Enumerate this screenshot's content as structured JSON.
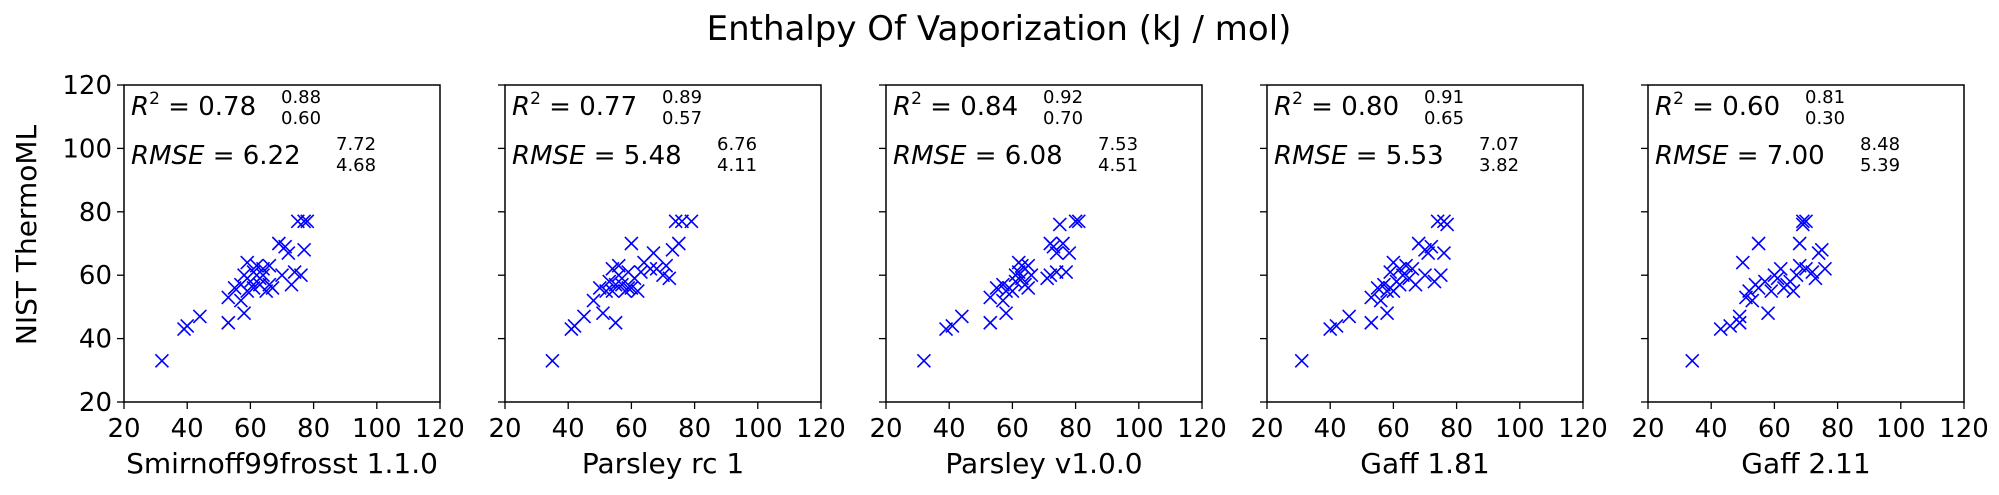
{
  "figure": {
    "title": "Enthalpy Of Vaporization (kJ / mol)",
    "shared_ylabel": "NIST ThermoML",
    "marker_color": "#0000ff",
    "marker_symbol": "x-marker"
  },
  "chart_data": [
    {
      "type": "scatter",
      "xlabel": "Smirnoff99frosst 1.1.0",
      "xlim": [
        20,
        120
      ],
      "ylim": [
        20,
        120
      ],
      "xticks": [
        20,
        40,
        60,
        80,
        100,
        120
      ],
      "yticks": [
        20,
        40,
        60,
        80,
        100,
        120
      ],
      "grid": false,
      "stats": {
        "r2": "0.78",
        "r2_hi": "0.88",
        "r2_lo": "0.60",
        "rmse": "6.22",
        "rmse_hi": "7.72",
        "rmse_lo": "4.68"
      },
      "points": [
        [
          32,
          33
        ],
        [
          39,
          43
        ],
        [
          40,
          44
        ],
        [
          44,
          47
        ],
        [
          53,
          45
        ],
        [
          53,
          53
        ],
        [
          55,
          56
        ],
        [
          57,
          52
        ],
        [
          57,
          57
        ],
        [
          58,
          48
        ],
        [
          58,
          60
        ],
        [
          59,
          64
        ],
        [
          59,
          55
        ],
        [
          60,
          58
        ],
        [
          61,
          56
        ],
        [
          61,
          61
        ],
        [
          62,
          63
        ],
        [
          63,
          57
        ],
        [
          63,
          59
        ],
        [
          64,
          62
        ],
        [
          64,
          60
        ],
        [
          65,
          55
        ],
        [
          66,
          57
        ],
        [
          66,
          63
        ],
        [
          67,
          56
        ],
        [
          69,
          70
        ],
        [
          70,
          60
        ],
        [
          71,
          69
        ],
        [
          72,
          67
        ],
        [
          73,
          57
        ],
        [
          74,
          61
        ],
        [
          75,
          77
        ],
        [
          76,
          60
        ],
        [
          77,
          68
        ],
        [
          77,
          77
        ],
        [
          78,
          77
        ]
      ]
    },
    {
      "type": "scatter",
      "xlabel": "Parsley rc 1",
      "xlim": [
        20,
        120
      ],
      "ylim": [
        20,
        120
      ],
      "xticks": [
        20,
        40,
        60,
        80,
        100,
        120
      ],
      "yticks": [
        20,
        40,
        60,
        80,
        100,
        120
      ],
      "grid": false,
      "stats": {
        "r2": "0.77",
        "r2_hi": "0.89",
        "r2_lo": "0.57",
        "rmse": "5.48",
        "rmse_hi": "6.76",
        "rmse_lo": "4.11"
      },
      "points": [
        [
          35,
          33
        ],
        [
          41,
          43
        ],
        [
          42,
          44
        ],
        [
          45,
          47
        ],
        [
          48,
          52
        ],
        [
          50,
          56
        ],
        [
          51,
          48
        ],
        [
          52,
          55
        ],
        [
          53,
          58
        ],
        [
          54,
          55
        ],
        [
          54,
          62
        ],
        [
          55,
          45
        ],
        [
          55,
          57
        ],
        [
          56,
          60
        ],
        [
          56,
          63
        ],
        [
          57,
          57
        ],
        [
          58,
          55
        ],
        [
          59,
          61
        ],
        [
          59,
          56
        ],
        [
          60,
          70
        ],
        [
          60,
          56
        ],
        [
          61,
          59
        ],
        [
          62,
          55
        ],
        [
          63,
          61
        ],
        [
          64,
          64
        ],
        [
          66,
          62
        ],
        [
          67,
          67
        ],
        [
          68,
          62
        ],
        [
          70,
          60
        ],
        [
          71,
          63
        ],
        [
          72,
          59
        ],
        [
          73,
          68
        ],
        [
          74,
          77
        ],
        [
          75,
          70
        ],
        [
          76,
          77
        ],
        [
          79,
          77
        ]
      ]
    },
    {
      "type": "scatter",
      "xlabel": "Parsley v1.0.0",
      "xlim": [
        20,
        120
      ],
      "ylim": [
        20,
        120
      ],
      "xticks": [
        20,
        40,
        60,
        80,
        100,
        120
      ],
      "yticks": [
        20,
        40,
        60,
        80,
        100,
        120
      ],
      "grid": false,
      "stats": {
        "r2": "0.84",
        "r2_hi": "0.92",
        "r2_lo": "0.70",
        "rmse": "6.08",
        "rmse_hi": "7.53",
        "rmse_lo": "4.51"
      },
      "points": [
        [
          32,
          33
        ],
        [
          39,
          43
        ],
        [
          41,
          44
        ],
        [
          44,
          47
        ],
        [
          53,
          45
        ],
        [
          53,
          53
        ],
        [
          55,
          56
        ],
        [
          57,
          57
        ],
        [
          57,
          52
        ],
        [
          58,
          48
        ],
        [
          58,
          55
        ],
        [
          59,
          56
        ],
        [
          60,
          55
        ],
        [
          61,
          60
        ],
        [
          61,
          58
        ],
        [
          62,
          64
        ],
        [
          62,
          61
        ],
        [
          63,
          63
        ],
        [
          63,
          59
        ],
        [
          64,
          62
        ],
        [
          64,
          57
        ],
        [
          65,
          56
        ],
        [
          65,
          63
        ],
        [
          66,
          60
        ],
        [
          71,
          59
        ],
        [
          72,
          60
        ],
        [
          72,
          70
        ],
        [
          73,
          69
        ],
        [
          74,
          67
        ],
        [
          74,
          61
        ],
        [
          75,
          76
        ],
        [
          76,
          70
        ],
        [
          77,
          61
        ],
        [
          78,
          67
        ],
        [
          80,
          77
        ],
        [
          81,
          77
        ]
      ]
    },
    {
      "type": "scatter",
      "xlabel": "Gaff 1.81",
      "xlim": [
        20,
        120
      ],
      "ylim": [
        20,
        120
      ],
      "xticks": [
        20,
        40,
        60,
        80,
        100,
        120
      ],
      "yticks": [
        20,
        40,
        60,
        80,
        100,
        120
      ],
      "grid": false,
      "stats": {
        "r2": "0.80",
        "r2_hi": "0.91",
        "r2_lo": "0.65",
        "rmse": "5.53",
        "rmse_hi": "7.07",
        "rmse_lo": "3.82"
      },
      "points": [
        [
          31,
          33
        ],
        [
          40,
          43
        ],
        [
          42,
          44
        ],
        [
          46,
          47
        ],
        [
          53,
          45
        ],
        [
          53,
          53
        ],
        [
          55,
          56
        ],
        [
          56,
          52
        ],
        [
          57,
          57
        ],
        [
          58,
          55
        ],
        [
          58,
          48
        ],
        [
          59,
          61
        ],
        [
          59,
          56
        ],
        [
          60,
          64
        ],
        [
          60,
          55
        ],
        [
          61,
          58
        ],
        [
          62,
          57
        ],
        [
          62,
          62
        ],
        [
          63,
          60
        ],
        [
          64,
          63
        ],
        [
          65,
          59
        ],
        [
          66,
          62
        ],
        [
          67,
          57
        ],
        [
          68,
          70
        ],
        [
          70,
          60
        ],
        [
          70,
          68
        ],
        [
          71,
          67
        ],
        [
          72,
          69
        ],
        [
          73,
          58
        ],
        [
          74,
          77
        ],
        [
          75,
          60
        ],
        [
          76,
          67
        ],
        [
          76,
          77
        ],
        [
          77,
          76
        ]
      ]
    },
    {
      "type": "scatter",
      "xlabel": "Gaff 2.11",
      "xlim": [
        20,
        120
      ],
      "ylim": [
        20,
        120
      ],
      "xticks": [
        20,
        40,
        60,
        80,
        100,
        120
      ],
      "yticks": [
        20,
        40,
        60,
        80,
        100,
        120
      ],
      "grid": false,
      "stats": {
        "r2": "0.60",
        "r2_hi": "0.81",
        "r2_lo": "0.30",
        "rmse": "7.00",
        "rmse_hi": "8.48",
        "rmse_lo": "5.39"
      },
      "points": [
        [
          34,
          33
        ],
        [
          43,
          43
        ],
        [
          46,
          44
        ],
        [
          49,
          47
        ],
        [
          49,
          45
        ],
        [
          50,
          64
        ],
        [
          51,
          53
        ],
        [
          52,
          55
        ],
        [
          53,
          52
        ],
        [
          54,
          57
        ],
        [
          55,
          56
        ],
        [
          55,
          70
        ],
        [
          57,
          58
        ],
        [
          58,
          48
        ],
        [
          59,
          55
        ],
        [
          60,
          60
        ],
        [
          61,
          59
        ],
        [
          62,
          62
        ],
        [
          63,
          56
        ],
        [
          64,
          57
        ],
        [
          65,
          58
        ],
        [
          66,
          55
        ],
        [
          67,
          60
        ],
        [
          68,
          63
        ],
        [
          68,
          70
        ],
        [
          69,
          77
        ],
        [
          69,
          76
        ],
        [
          70,
          77
        ],
        [
          70,
          62
        ],
        [
          72,
          61
        ],
        [
          73,
          59
        ],
        [
          74,
          67
        ],
        [
          75,
          68
        ],
        [
          76,
          62
        ]
      ]
    }
  ]
}
